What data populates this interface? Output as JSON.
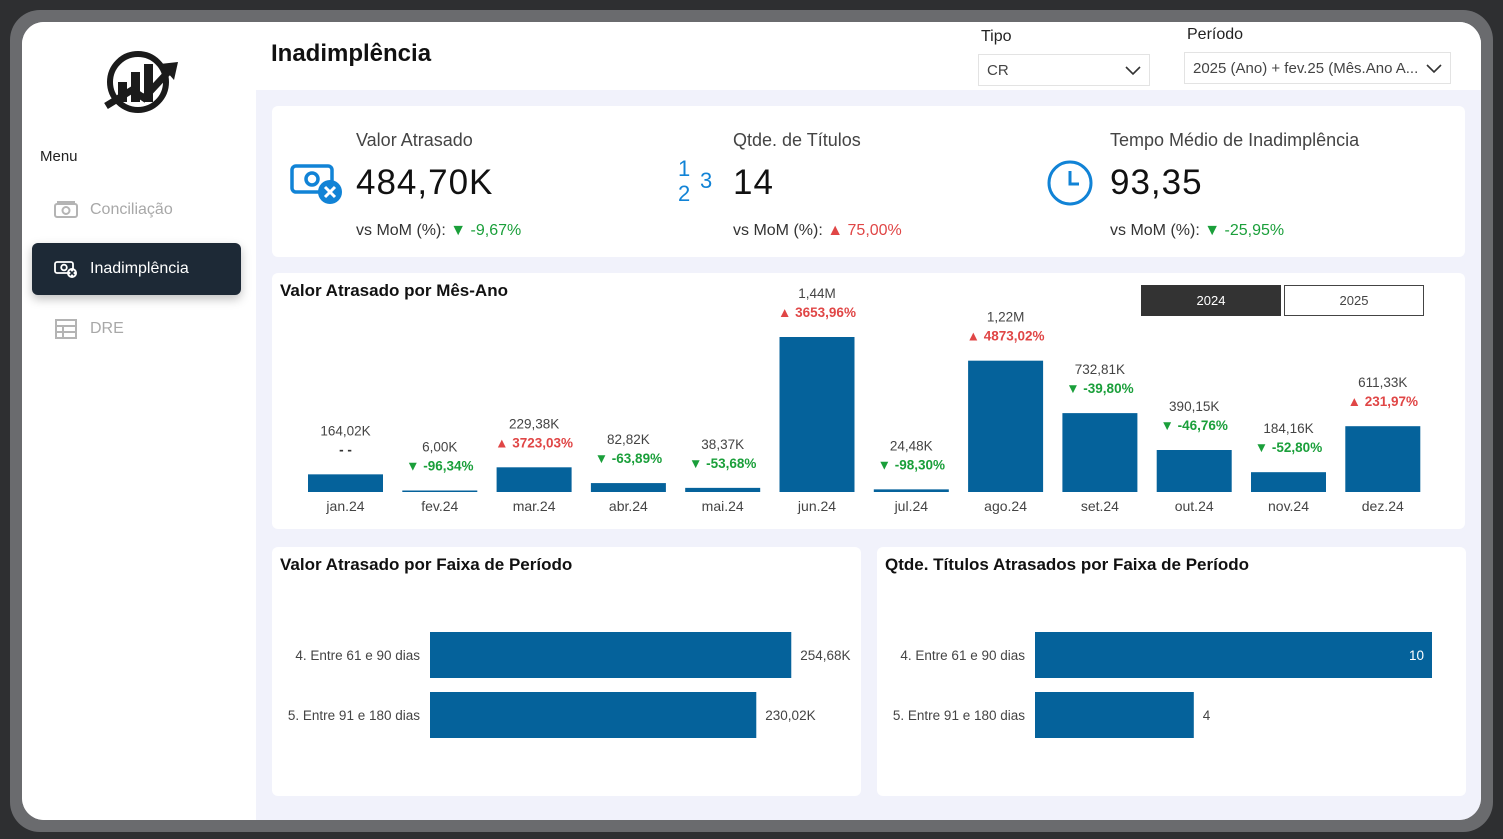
{
  "sidebar": {
    "menu_label": "Menu",
    "items": [
      {
        "label": "Conciliação",
        "icon": "money-icon",
        "active": false
      },
      {
        "label": "Inadimplência",
        "icon": "money-cancel-icon",
        "active": true
      },
      {
        "label": "DRE",
        "icon": "table-icon",
        "active": false
      }
    ]
  },
  "header": {
    "title": "Inadimplência",
    "filters": {
      "tipo": {
        "label": "Tipo",
        "value": "CR"
      },
      "periodo": {
        "label": "Período",
        "value": "2025 (Ano) + fev.25 (Mês.Ano A..."
      }
    }
  },
  "kpis": [
    {
      "label": "Valor Atrasado",
      "value": "484,70K",
      "compare_label": "vs MoM (%):",
      "delta": "▼ -9,67%",
      "direction": "down",
      "icon": "money-cancel-icon"
    },
    {
      "label": "Qtde. de Títulos",
      "value": "14",
      "compare_label": "vs MoM (%):",
      "delta": "▲ 75,00%",
      "direction": "up",
      "icon": "numbers-icon",
      "icon_text": [
        "1",
        "2",
        "3"
      ]
    },
    {
      "label": "Tempo Médio de Inadimplência",
      "value": "93,35",
      "compare_label": "vs MoM (%):",
      "delta": "▼ -25,95%",
      "direction": "down",
      "icon": "clock-icon"
    }
  ],
  "year_toggle": {
    "options": [
      "2024",
      "2025"
    ],
    "selected": "2024"
  },
  "colors": {
    "bar": "#05629b",
    "down": "#1a9f3a",
    "up": "#e04646",
    "nav_active": "#1d2936",
    "icon_blue": "#1183d6"
  },
  "chart_data": [
    {
      "type": "bar",
      "title": "Valor Atrasado por Mês-Ano",
      "categories": [
        "jan.24",
        "fev.24",
        "mar.24",
        "abr.24",
        "mai.24",
        "jun.24",
        "jul.24",
        "ago.24",
        "set.24",
        "out.24",
        "nov.24",
        "dez.24"
      ],
      "values": [
        164020,
        6000,
        229380,
        82820,
        38370,
        1440000,
        24480,
        1220000,
        732810,
        390150,
        184160,
        611330
      ],
      "value_labels": [
        "164,02K",
        "6,00K",
        "229,38K",
        "82,82K",
        "38,37K",
        "1,44M",
        "24,48K",
        "1,22M",
        "732,81K",
        "390,15K",
        "184,16K",
        "611,33K"
      ],
      "variation_labels": [
        "- -",
        "▼ -96,34%",
        "▲ 3723,03%",
        "▼ -63,89%",
        "▼ -53,68%",
        "▲ 3653,96%",
        "▼ -98,30%",
        "▲ 4873,02%",
        "▼ -39,80%",
        "▼ -46,76%",
        "▼ -52,80%",
        "▲ 231,97%"
      ],
      "variation_direction": [
        "none",
        "down",
        "up",
        "down",
        "down",
        "up",
        "down",
        "up",
        "down",
        "down",
        "down",
        "up"
      ],
      "grid": false
    },
    {
      "type": "bar",
      "orientation": "horizontal",
      "title": "Valor Atrasado por Faixa de Período",
      "categories": [
        "4. Entre 61 e 90 dias",
        "5. Entre 91 e 180 dias"
      ],
      "values": [
        254680,
        230020
      ],
      "value_labels": [
        "254,68K",
        "230,02K"
      ],
      "grid": false
    },
    {
      "type": "bar",
      "orientation": "horizontal",
      "title": "Qtde. Títulos Atrasados por Faixa de Período",
      "categories": [
        "4. Entre 61 e 90 dias",
        "5. Entre 91 e 180 dias"
      ],
      "values": [
        10,
        4
      ],
      "value_labels": [
        "10",
        "4"
      ],
      "grid": false
    }
  ]
}
